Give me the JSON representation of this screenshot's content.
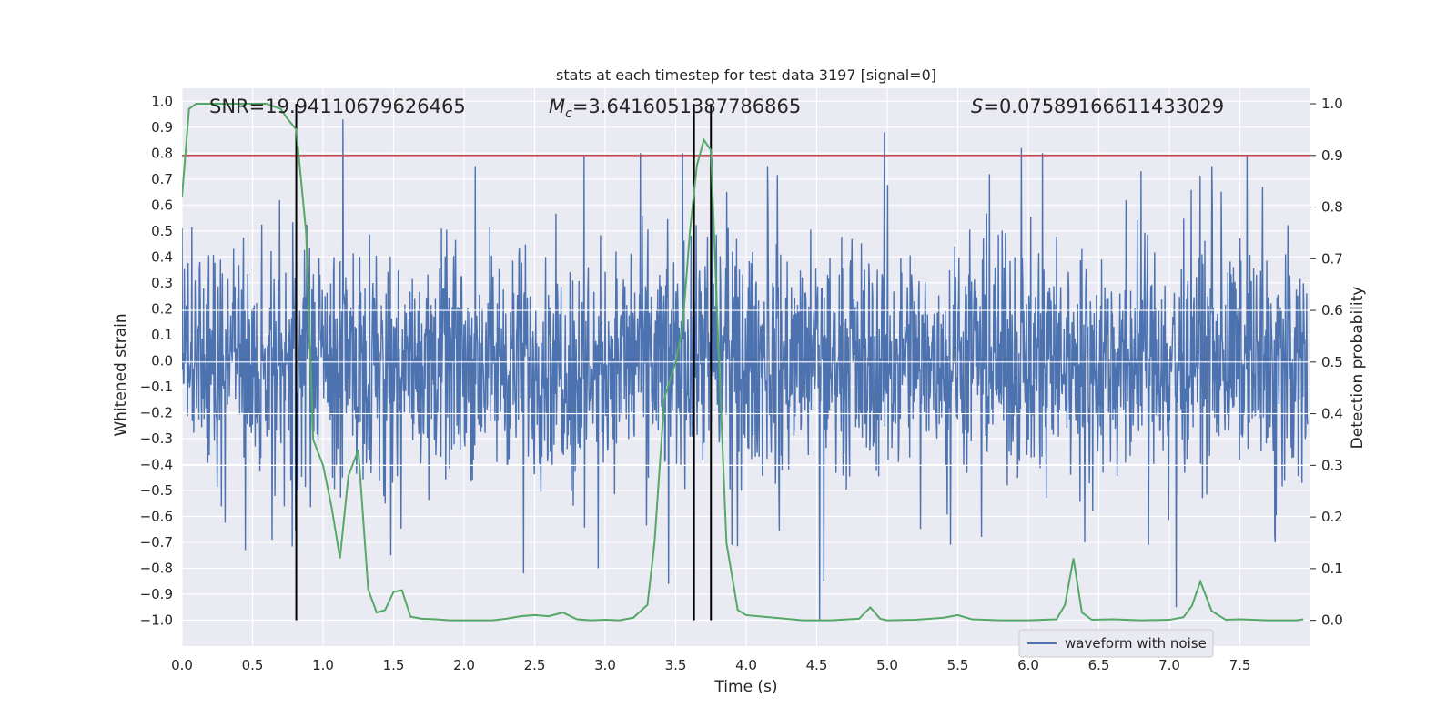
{
  "chart_data": {
    "type": "line",
    "title": "stats at each timestep for test data 3197 [signal=0]",
    "xlabel": "Time (s)",
    "ylabel": "Whitened strain",
    "y2label": "Detection probability",
    "xlim": [
      0,
      8
    ],
    "ylim": [
      -1.1,
      1.05
    ],
    "y2lim": [
      -0.05,
      1.03
    ],
    "xticks": [
      0.0,
      0.5,
      1.0,
      1.5,
      2.0,
      2.5,
      3.0,
      3.5,
      4.0,
      4.5,
      5.0,
      5.5,
      6.0,
      6.5,
      7.0,
      7.5
    ],
    "xtick_labels": [
      "0.0",
      "0.5",
      "1.0",
      "1.5",
      "2.0",
      "2.5",
      "3.0",
      "3.5",
      "4.0",
      "4.5",
      "5.0",
      "5.5",
      "6.0",
      "6.5",
      "7.0",
      "7.5"
    ],
    "yticks": [
      1.0,
      0.9,
      0.8,
      0.7,
      0.6,
      0.5,
      0.4,
      0.3,
      0.2,
      0.1,
      0.0,
      -0.1,
      -0.2,
      -0.3,
      -0.4,
      -0.5,
      -0.6,
      -0.7,
      -0.8,
      -0.9,
      -1.0
    ],
    "ytick_labels": [
      "1.0",
      "0.9",
      "0.8",
      "0.7",
      "0.6",
      "0.5",
      "0.4",
      "0.3",
      "0.2",
      "0.1",
      "0.0",
      "−0.1",
      "−0.2",
      "−0.3",
      "−0.4",
      "−0.5",
      "−0.6",
      "−0.7",
      "−0.8",
      "−0.9",
      "−1.0"
    ],
    "y2ticks": [
      1.0,
      0.9,
      0.8,
      0.7,
      0.6,
      0.5,
      0.4,
      0.3,
      0.2,
      0.1,
      0.0
    ],
    "y2tick_labels": [
      "1.0",
      "0.9",
      "0.8",
      "0.7",
      "0.6",
      "0.5",
      "0.4",
      "0.3",
      "0.2",
      "0.1",
      "0.0"
    ],
    "annotations": {
      "snr": "SNR=19.94110679626465",
      "mc_symbol": "M",
      "mc_sub": "c",
      "mc_value": "=3.6416051387786865",
      "s_symbol": "S",
      "s_value": "=0.07589166611433029"
    },
    "threshold": {
      "value": 0.9,
      "axis": "right",
      "color": "#c44e52"
    },
    "vertical_markers": [
      0.81,
      3.63,
      3.75
    ],
    "grid": true,
    "legend": {
      "position": "bottom-right",
      "entries": [
        "waveform with noise"
      ]
    },
    "series": [
      {
        "name": "waveform with noise",
        "axis": "left",
        "color": "#4c72b0",
        "description_of_extremes": "dense noise band roughly between -0.45 and 0.45 with spikes",
        "spikes_x": [
          0.45,
          0.64,
          1.14,
          1.48,
          2.08,
          2.42,
          2.85,
          2.95,
          3.25,
          3.45,
          3.55,
          3.76,
          3.9,
          4.15,
          4.52,
          4.55,
          4.98,
          5.45,
          5.95,
          6.1,
          6.4,
          6.8,
          7.05,
          7.3,
          7.55,
          7.75
        ],
        "spikes_y": [
          -0.73,
          -0.69,
          0.93,
          -0.75,
          0.75,
          -0.82,
          0.79,
          -0.8,
          0.8,
          -0.86,
          0.8,
          0.78,
          -0.71,
          0.75,
          -1.0,
          -0.85,
          0.88,
          -0.71,
          0.82,
          0.8,
          -0.7,
          0.73,
          -0.95,
          0.75,
          0.79,
          -0.7
        ]
      },
      {
        "name": "Detection probability",
        "axis": "right",
        "color": "#55a868",
        "x": [
          0.0,
          0.05,
          0.1,
          0.2,
          0.3,
          0.4,
          0.5,
          0.6,
          0.7,
          0.75,
          0.81,
          0.88,
          0.93,
          1.0,
          1.06,
          1.12,
          1.18,
          1.25,
          1.32,
          1.38,
          1.44,
          1.5,
          1.56,
          1.62,
          1.7,
          1.8,
          1.9,
          2.0,
          2.2,
          2.3,
          2.4,
          2.5,
          2.6,
          2.7,
          2.8,
          2.9,
          3.0,
          3.1,
          3.2,
          3.3,
          3.35,
          3.42,
          3.5,
          3.55,
          3.6,
          3.65,
          3.7,
          3.75,
          3.8,
          3.86,
          3.94,
          4.0,
          4.2,
          4.4,
          4.6,
          4.8,
          4.88,
          4.95,
          5.0,
          5.2,
          5.4,
          5.5,
          5.6,
          5.8,
          6.0,
          6.2,
          6.26,
          6.32,
          6.38,
          6.45,
          6.6,
          6.8,
          7.0,
          7.1,
          7.16,
          7.22,
          7.3,
          7.4,
          7.5,
          7.7,
          7.9,
          7.95
        ],
        "y": [
          0.82,
          0.99,
          1.0,
          1.0,
          1.0,
          1.0,
          1.0,
          1.0,
          0.99,
          0.97,
          0.95,
          0.75,
          0.35,
          0.3,
          0.22,
          0.12,
          0.28,
          0.33,
          0.06,
          0.015,
          0.02,
          0.055,
          0.058,
          0.007,
          0.003,
          0.002,
          0.0,
          0.0,
          0.0,
          0.003,
          0.008,
          0.01,
          0.008,
          0.015,
          0.002,
          0.0,
          0.001,
          0.0,
          0.005,
          0.03,
          0.15,
          0.43,
          0.5,
          0.57,
          0.75,
          0.88,
          0.93,
          0.91,
          0.55,
          0.15,
          0.02,
          0.01,
          0.005,
          0.0,
          0.0,
          0.003,
          0.025,
          0.003,
          0.0,
          0.001,
          0.005,
          0.01,
          0.002,
          0.0,
          0.0,
          0.002,
          0.03,
          0.12,
          0.015,
          0.001,
          0.002,
          0.0,
          0.001,
          0.006,
          0.028,
          0.075,
          0.018,
          0.001,
          0.002,
          0.0,
          0.0,
          0.002
        ]
      }
    ]
  }
}
